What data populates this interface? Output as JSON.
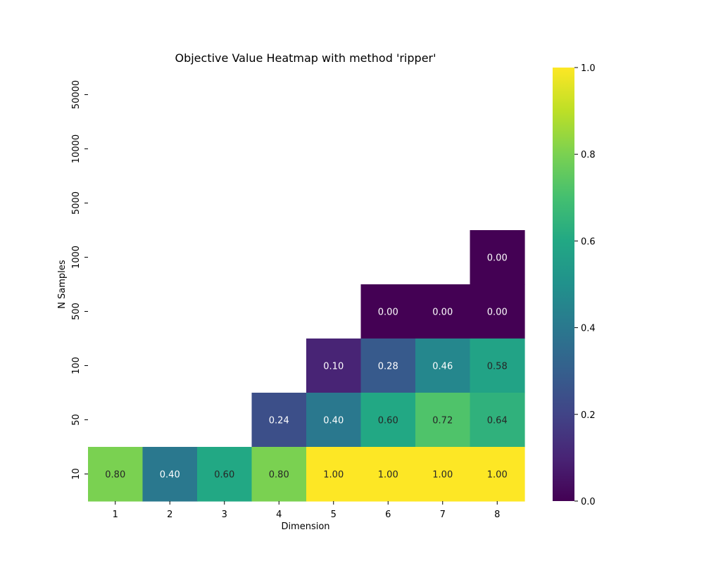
{
  "chart_data": {
    "type": "heatmap",
    "title": "Objective Value Heatmap with method 'ripper'",
    "xlabel": "Dimension",
    "ylabel": "N Samples",
    "x_categories": [
      "1",
      "2",
      "3",
      "4",
      "5",
      "6",
      "7",
      "8"
    ],
    "y_categories": [
      "50000",
      "10000",
      "5000",
      "1000",
      "500",
      "100",
      "50",
      "10"
    ],
    "values": [
      [
        null,
        null,
        null,
        null,
        null,
        null,
        null,
        null
      ],
      [
        null,
        null,
        null,
        null,
        null,
        null,
        null,
        null
      ],
      [
        null,
        null,
        null,
        null,
        null,
        null,
        null,
        null
      ],
      [
        null,
        null,
        null,
        null,
        null,
        null,
        null,
        0.0
      ],
      [
        null,
        null,
        null,
        null,
        null,
        0.0,
        0.0,
        0.0
      ],
      [
        null,
        null,
        null,
        null,
        0.1,
        0.28,
        0.46,
        0.58
      ],
      [
        null,
        null,
        null,
        0.24,
        0.4,
        0.6,
        0.72,
        0.64
      ],
      [
        0.8,
        0.4,
        0.6,
        0.8,
        1.0,
        1.0,
        1.0,
        1.0
      ]
    ],
    "value_format": "0.00",
    "colormap": "viridis",
    "colorbar": {
      "range": [
        0.0,
        1.0
      ],
      "ticks": [
        "0.0",
        "0.2",
        "0.4",
        "0.6",
        "0.8",
        "1.0"
      ]
    }
  }
}
